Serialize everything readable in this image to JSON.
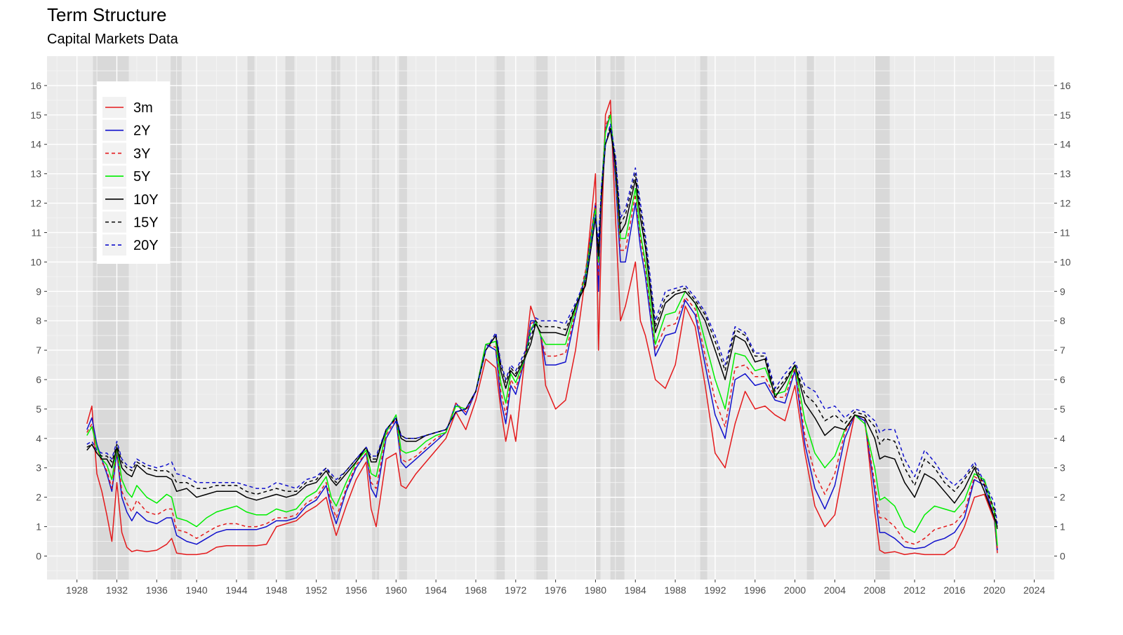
{
  "chart_data": {
    "type": "line",
    "title": "Term Structure",
    "subtitle": "Capital Markets Data",
    "xlabel": "",
    "ylabel": "",
    "xlim": [
      1925,
      2026
    ],
    "ylim": [
      -0.8,
      17.0
    ],
    "x_ticks": [
      "1928",
      "1932",
      "1936",
      "1940",
      "1944",
      "1948",
      "1952",
      "1956",
      "1960",
      "1964",
      "1968",
      "1972",
      "1976",
      "1980",
      "1984",
      "1988",
      "1992",
      "1996",
      "2000",
      "2004",
      "2008",
      "2012",
      "2016",
      "2020",
      "2024"
    ],
    "y_ticks": [
      "0",
      "1",
      "2",
      "3",
      "4",
      "5",
      "6",
      "7",
      "8",
      "9",
      "10",
      "11",
      "12",
      "13",
      "14",
      "15",
      "16"
    ],
    "grid": true,
    "legend_position": "top-left",
    "recessions": [
      [
        1929.6,
        1933.2
      ],
      [
        1937.4,
        1938.5
      ],
      [
        1945.1,
        1945.8
      ],
      [
        1948.9,
        1949.8
      ],
      [
        1953.5,
        1954.4
      ],
      [
        1957.6,
        1958.3
      ],
      [
        1960.3,
        1961.1
      ],
      [
        1969.9,
        1970.9
      ],
      [
        1973.9,
        1975.2
      ],
      [
        1980.0,
        1980.5
      ],
      [
        1981.5,
        1982.9
      ],
      [
        1990.5,
        1991.2
      ],
      [
        2001.2,
        2001.9
      ],
      [
        2007.9,
        2009.5
      ]
    ],
    "colors": {
      "3m": "#e41a1c",
      "2Y": "#1010cc",
      "3Y": "#e41a1c",
      "5Y": "#00ee00",
      "10Y": "#000000",
      "15Y": "#000000",
      "20Y": "#1010cc"
    },
    "x": [
      1929.0,
      1929.5,
      1930,
      1930.5,
      1931,
      1931.5,
      1932,
      1932.5,
      1933,
      1933.5,
      1934,
      1935,
      1936,
      1937,
      1937.5,
      1938,
      1939,
      1940,
      1941,
      1942,
      1943,
      1944,
      1945,
      1946,
      1947,
      1948,
      1949,
      1950,
      1951,
      1952,
      1953,
      1953.5,
      1954,
      1955,
      1956,
      1957,
      1957.5,
      1958,
      1959,
      1960,
      1960.5,
      1961,
      1962,
      1963,
      1964,
      1965,
      1966,
      1967,
      1968,
      1969,
      1970,
      1970.5,
      1971,
      1971.5,
      1972,
      1973,
      1973.5,
      1974,
      1974.5,
      1975,
      1976,
      1977,
      1978,
      1979,
      1980,
      1980.3,
      1980.6,
      1981,
      1981.5,
      1982,
      1982.5,
      1983,
      1984,
      1984.5,
      1985,
      1986,
      1987,
      1988,
      1989,
      1990,
      1991,
      1992,
      1993,
      1994,
      1995,
      1996,
      1997,
      1998,
      1999,
      2000,
      2001,
      2002,
      2003,
      2004,
      2005,
      2006,
      2007,
      2008,
      2008.5,
      2009,
      2010,
      2011,
      2012,
      2013,
      2014,
      2015,
      2016,
      2017,
      2018,
      2019,
      2020,
      2020.3
    ],
    "series": [
      {
        "name": "3m",
        "dashed": false,
        "values": [
          4.5,
          5.1,
          2.8,
          2.2,
          1.4,
          0.5,
          2.5,
          0.8,
          0.3,
          0.15,
          0.2,
          0.15,
          0.2,
          0.4,
          0.6,
          0.1,
          0.05,
          0.05,
          0.1,
          0.3,
          0.35,
          0.35,
          0.35,
          0.35,
          0.4,
          1.0,
          1.1,
          1.2,
          1.5,
          1.7,
          2.0,
          1.3,
          0.7,
          1.7,
          2.6,
          3.2,
          1.6,
          1.0,
          3.3,
          3.5,
          2.4,
          2.3,
          2.8,
          3.2,
          3.6,
          4.0,
          4.9,
          4.3,
          5.3,
          6.7,
          6.4,
          5.0,
          3.9,
          4.8,
          3.9,
          7.0,
          8.5,
          8.0,
          7.5,
          5.8,
          5.0,
          5.3,
          7.0,
          9.5,
          13.0,
          7.0,
          11.0,
          15.0,
          15.5,
          11.5,
          8.0,
          8.5,
          10.0,
          8.0,
          7.5,
          6.0,
          5.7,
          6.5,
          8.5,
          7.8,
          5.8,
          3.5,
          3.0,
          4.5,
          5.6,
          5.0,
          5.1,
          4.8,
          4.6,
          5.8,
          3.5,
          1.7,
          1.0,
          1.4,
          3.2,
          4.8,
          4.7,
          1.5,
          0.2,
          0.1,
          0.15,
          0.05,
          0.1,
          0.05,
          0.05,
          0.05,
          0.3,
          1.0,
          2.0,
          2.1,
          1.2,
          0.1
        ]
      },
      {
        "name": "2Y",
        "dashed": false,
        "values": [
          4.3,
          4.7,
          3.8,
          3.3,
          2.8,
          2.2,
          3.5,
          2.0,
          1.5,
          1.2,
          1.5,
          1.2,
          1.1,
          1.3,
          1.3,
          0.7,
          0.5,
          0.4,
          0.6,
          0.8,
          0.9,
          0.9,
          0.9,
          0.9,
          1.0,
          1.2,
          1.2,
          1.3,
          1.7,
          1.9,
          2.4,
          1.6,
          1.1,
          2.2,
          3.0,
          3.5,
          2.3,
          2.0,
          4.0,
          4.6,
          3.2,
          3.0,
          3.3,
          3.6,
          3.9,
          4.2,
          5.2,
          4.8,
          5.6,
          7.2,
          7.0,
          5.3,
          4.5,
          5.8,
          5.5,
          6.8,
          8.0,
          8.0,
          7.5,
          6.5,
          6.5,
          6.6,
          8.2,
          9.6,
          12.0,
          9.0,
          12.5,
          14.5,
          15.0,
          12.8,
          10.0,
          10.0,
          12.0,
          10.5,
          9.5,
          6.8,
          7.5,
          7.6,
          8.7,
          8.2,
          6.5,
          4.8,
          4.0,
          6.0,
          6.2,
          5.8,
          5.9,
          5.3,
          5.2,
          6.3,
          3.8,
          2.3,
          1.6,
          2.4,
          4.0,
          4.8,
          4.6,
          2.2,
          0.8,
          0.8,
          0.6,
          0.3,
          0.25,
          0.3,
          0.5,
          0.6,
          0.8,
          1.3,
          2.6,
          2.4,
          1.3,
          0.2
        ]
      },
      {
        "name": "3Y",
        "dashed": true,
        "values": [
          4.2,
          4.5,
          3.7,
          3.2,
          2.9,
          2.3,
          3.6,
          2.2,
          1.8,
          1.5,
          1.9,
          1.5,
          1.4,
          1.6,
          1.6,
          0.9,
          0.8,
          0.6,
          0.8,
          1.0,
          1.1,
          1.1,
          1.0,
          1.0,
          1.1,
          1.3,
          1.3,
          1.4,
          1.8,
          2.0,
          2.5,
          1.8,
          1.3,
          2.3,
          3.1,
          3.5,
          2.5,
          2.3,
          4.1,
          4.7,
          3.3,
          3.2,
          3.4,
          3.7,
          4.0,
          4.2,
          5.2,
          4.9,
          5.6,
          7.2,
          7.1,
          5.6,
          4.8,
          6.0,
          5.7,
          6.8,
          7.9,
          8.0,
          7.5,
          6.8,
          6.8,
          6.9,
          8.3,
          9.7,
          12.0,
          9.5,
          12.5,
          14.6,
          15.1,
          13.0,
          10.4,
          10.4,
          12.3,
          10.8,
          9.8,
          7.0,
          7.8,
          7.9,
          8.8,
          8.4,
          6.8,
          5.3,
          4.4,
          6.4,
          6.5,
          6.1,
          6.1,
          5.4,
          5.4,
          6.4,
          4.1,
          2.8,
          2.1,
          2.8,
          4.2,
          4.8,
          4.5,
          2.5,
          1.3,
          1.3,
          1.0,
          0.5,
          0.4,
          0.6,
          0.9,
          1.0,
          1.1,
          1.5,
          2.7,
          2.5,
          1.4,
          0.25
        ]
      },
      {
        "name": "5Y",
        "dashed": false,
        "values": [
          4.1,
          4.4,
          3.7,
          3.3,
          3.1,
          2.6,
          3.7,
          2.6,
          2.2,
          2.0,
          2.4,
          2.0,
          1.8,
          2.1,
          2.0,
          1.3,
          1.2,
          1.0,
          1.3,
          1.5,
          1.6,
          1.7,
          1.5,
          1.4,
          1.4,
          1.6,
          1.5,
          1.6,
          2.0,
          2.2,
          2.7,
          2.0,
          1.7,
          2.5,
          3.2,
          3.6,
          2.8,
          2.7,
          4.2,
          4.8,
          3.6,
          3.5,
          3.6,
          3.9,
          4.1,
          4.2,
          5.1,
          5.0,
          5.6,
          7.2,
          7.3,
          5.9,
          5.2,
          6.2,
          5.9,
          6.8,
          7.7,
          8.0,
          7.5,
          7.2,
          7.2,
          7.2,
          8.4,
          9.5,
          11.8,
          10.0,
          12.5,
          14.4,
          15.0,
          13.2,
          10.8,
          10.8,
          12.5,
          11.0,
          10.0,
          7.2,
          8.2,
          8.3,
          9.0,
          8.6,
          7.3,
          6.0,
          5.0,
          6.9,
          6.8,
          6.3,
          6.4,
          5.5,
          5.6,
          6.5,
          4.6,
          3.5,
          3.0,
          3.4,
          4.3,
          4.8,
          4.5,
          3.0,
          1.9,
          2.0,
          1.7,
          1.0,
          0.8,
          1.4,
          1.7,
          1.6,
          1.5,
          1.9,
          2.8,
          2.6,
          1.5,
          0.35
        ]
      },
      {
        "name": "10Y",
        "dashed": false,
        "values": [
          3.6,
          3.8,
          3.5,
          3.3,
          3.3,
          3.0,
          3.7,
          3.0,
          2.8,
          2.7,
          3.1,
          2.8,
          2.7,
          2.7,
          2.6,
          2.2,
          2.3,
          2.0,
          2.1,
          2.2,
          2.2,
          2.2,
          2.0,
          1.9,
          2.0,
          2.1,
          2.0,
          2.1,
          2.4,
          2.5,
          2.9,
          2.6,
          2.4,
          2.8,
          3.2,
          3.7,
          3.2,
          3.2,
          4.3,
          4.7,
          4.0,
          3.9,
          3.9,
          4.1,
          4.2,
          4.3,
          4.9,
          5.0,
          5.6,
          7.0,
          7.5,
          6.3,
          5.7,
          6.3,
          6.1,
          6.8,
          7.2,
          7.9,
          7.6,
          7.6,
          7.6,
          7.5,
          8.5,
          9.2,
          11.5,
          10.2,
          12.2,
          14.0,
          14.5,
          13.3,
          11.0,
          11.3,
          12.8,
          11.5,
          10.5,
          7.6,
          8.6,
          8.9,
          9.0,
          8.6,
          8.0,
          7.0,
          6.0,
          7.5,
          7.3,
          6.6,
          6.7,
          5.4,
          5.9,
          6.5,
          5.2,
          4.7,
          4.1,
          4.4,
          4.3,
          4.8,
          4.7,
          4.0,
          3.3,
          3.4,
          3.3,
          2.5,
          2.0,
          2.8,
          2.6,
          2.2,
          1.8,
          2.3,
          3.0,
          2.2,
          1.3,
          1.0
        ]
      },
      {
        "name": "15Y",
        "dashed": true,
        "values": [
          3.7,
          3.8,
          3.5,
          3.4,
          3.4,
          3.2,
          3.8,
          3.2,
          3.0,
          2.9,
          3.2,
          3.0,
          2.9,
          2.9,
          2.8,
          2.5,
          2.5,
          2.3,
          2.3,
          2.4,
          2.4,
          2.4,
          2.2,
          2.1,
          2.2,
          2.3,
          2.2,
          2.2,
          2.5,
          2.6,
          3.0,
          2.7,
          2.5,
          2.9,
          3.3,
          3.7,
          3.3,
          3.3,
          4.3,
          4.7,
          4.1,
          4.0,
          4.0,
          4.1,
          4.2,
          4.3,
          4.9,
          5.0,
          5.6,
          7.0,
          7.5,
          6.5,
          5.9,
          6.4,
          6.2,
          6.9,
          7.4,
          8.0,
          7.8,
          7.8,
          7.8,
          7.7,
          8.5,
          9.3,
          11.5,
          10.5,
          12.5,
          14.0,
          14.6,
          13.5,
          11.3,
          11.6,
          13.0,
          11.8,
          10.7,
          7.8,
          8.8,
          9.0,
          9.1,
          8.7,
          8.2,
          7.3,
          6.3,
          7.7,
          7.5,
          6.8,
          6.8,
          5.6,
          6.0,
          6.5,
          5.5,
          5.2,
          4.6,
          4.8,
          4.5,
          4.9,
          4.8,
          4.4,
          3.8,
          4.0,
          3.9,
          3.0,
          2.4,
          3.3,
          3.0,
          2.5,
          2.2,
          2.6,
          3.1,
          2.4,
          1.6,
          0.9
        ]
      },
      {
        "name": "20Y",
        "dashed": true,
        "values": [
          3.8,
          3.9,
          3.6,
          3.5,
          3.5,
          3.3,
          3.9,
          3.3,
          3.1,
          3.0,
          3.3,
          3.1,
          3.0,
          3.1,
          3.2,
          2.8,
          2.7,
          2.5,
          2.5,
          2.5,
          2.5,
          2.5,
          2.4,
          2.3,
          2.3,
          2.5,
          2.4,
          2.3,
          2.6,
          2.7,
          3.0,
          2.8,
          2.6,
          2.9,
          3.3,
          3.7,
          3.4,
          3.4,
          4.3,
          4.7,
          4.1,
          4.0,
          4.0,
          4.1,
          4.2,
          4.3,
          4.9,
          5.0,
          5.6,
          7.0,
          7.6,
          6.6,
          6.0,
          6.5,
          6.3,
          7.0,
          7.6,
          8.1,
          8.0,
          8.0,
          8.0,
          7.9,
          8.6,
          9.4,
          11.6,
          10.7,
          12.6,
          14.0,
          14.7,
          13.6,
          11.5,
          11.8,
          13.2,
          12.0,
          10.9,
          8.0,
          9.0,
          9.1,
          9.2,
          8.8,
          8.3,
          7.5,
          6.5,
          7.8,
          7.6,
          6.9,
          6.9,
          5.7,
          6.2,
          6.6,
          5.8,
          5.6,
          5.0,
          5.1,
          4.7,
          5.0,
          4.9,
          4.6,
          4.2,
          4.3,
          4.3,
          3.3,
          2.7,
          3.6,
          3.2,
          2.7,
          2.4,
          2.7,
          3.2,
          2.5,
          1.8,
          1.1
        ]
      }
    ]
  }
}
